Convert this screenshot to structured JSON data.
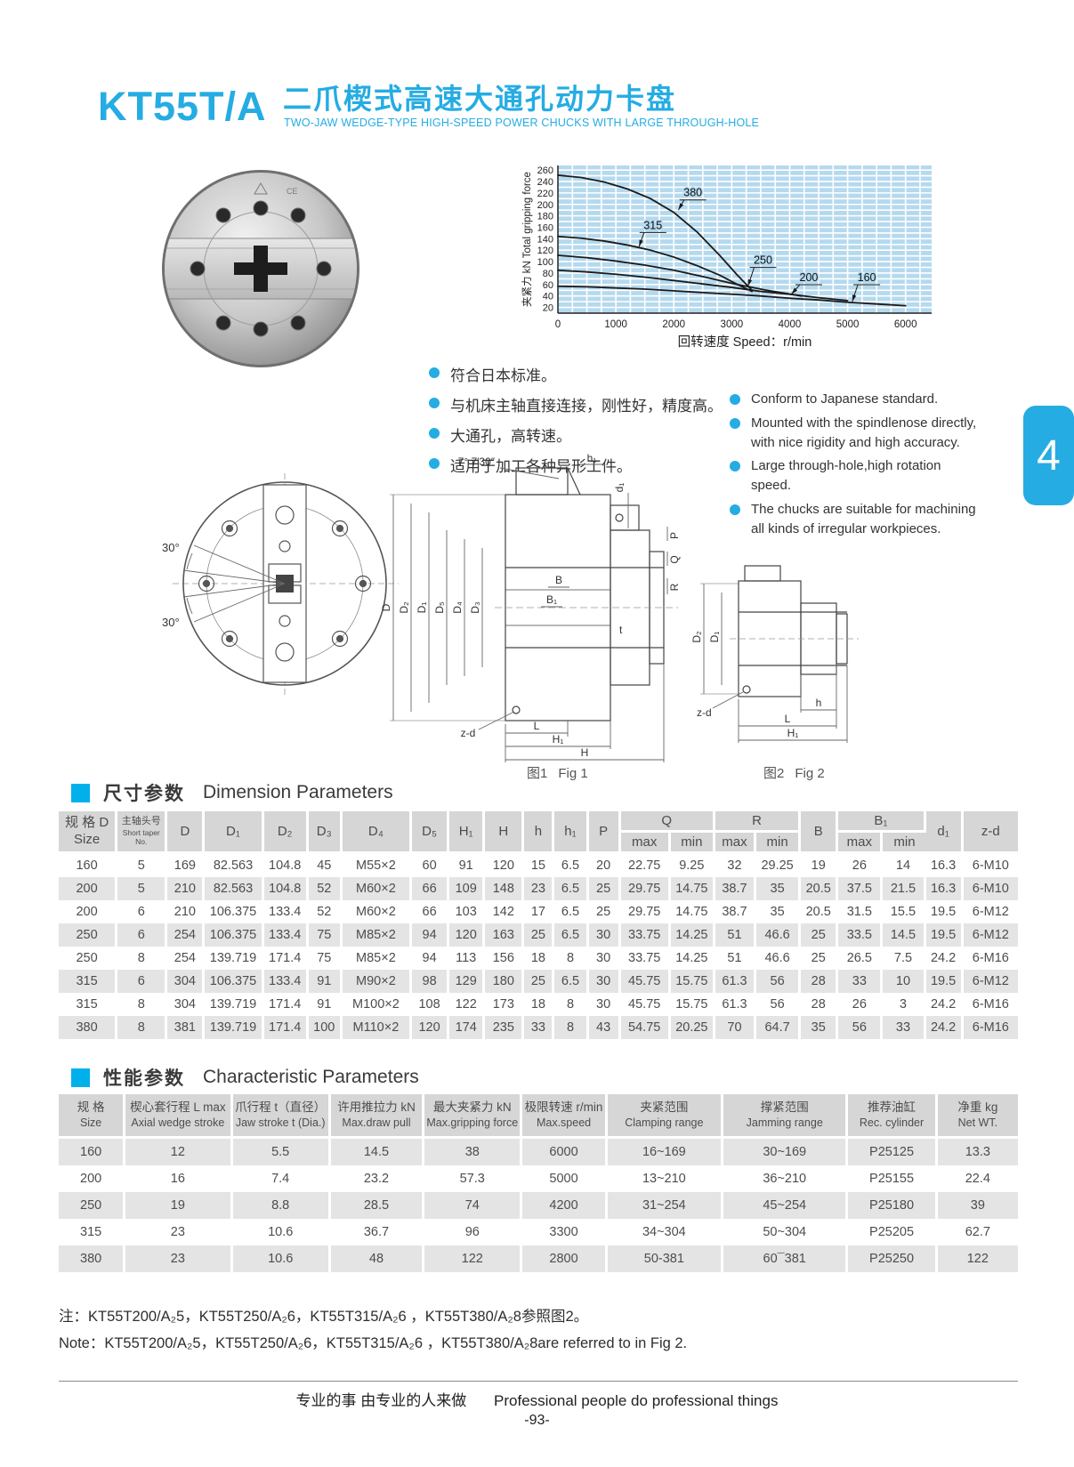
{
  "header": {
    "model": "KT55T/A",
    "title_zh": "二爪楔式高速大通孔动力卡盘",
    "title_en": "TWO-JAW WEDGE-TYPE HIGH-SPEED POWER CHUCKS WITH LARGE THROUGH-HOLE"
  },
  "side_tab": "4",
  "features_zh": [
    "符合日本标准。",
    "与机床主轴直接连接，刚性好，精度高。",
    "大通孔，高转速。",
    "适用于加工各种异形工件。"
  ],
  "features_en": [
    "Conform to Japanese standard.",
    "Mounted with the spindlenose directly, with nice rigidity and high accuracy.",
    "Large through-hole,high rotation speed.",
    "The chucks are suitable for machining all kinds of irregular workpieces."
  ],
  "chart_data": {
    "type": "line",
    "title": "",
    "xlabel": "回转速度  Speed：r/min",
    "ylabel": "夹紧力   kN Total gripping force",
    "xlim": [
      0,
      6450
    ],
    "ylim": [
      10,
      268
    ],
    "x_ticks": [
      0,
      1000,
      2000,
      3000,
      4000,
      5000,
      6000
    ],
    "y_ticks": [
      20,
      40,
      60,
      80,
      100,
      120,
      140,
      160,
      180,
      200,
      220,
      240,
      260
    ],
    "grid_x_step": 250,
    "grid_y_step": 10,
    "grid": "on",
    "plot_bg": "#b5d9ee",
    "line_color": "#1a1a1a",
    "legend_position": "inline-labels",
    "series": [
      {
        "name": "380",
        "label_xy": [
          2330,
          214
        ],
        "arrow_xy": [
          2080,
          190
        ],
        "points": [
          [
            0,
            251
          ],
          [
            400,
            247
          ],
          [
            800,
            239
          ],
          [
            1200,
            227
          ],
          [
            1600,
            210
          ],
          [
            2000,
            186
          ],
          [
            2400,
            152
          ],
          [
            2800,
            110
          ],
          [
            3100,
            76
          ],
          [
            3350,
            50
          ]
        ]
      },
      {
        "name": "315",
        "label_xy": [
          1640,
          157
        ],
        "arrow_xy": [
          1400,
          126
        ],
        "points": [
          [
            0,
            144
          ],
          [
            400,
            141
          ],
          [
            800,
            136
          ],
          [
            1200,
            129
          ],
          [
            1600,
            120
          ],
          [
            2000,
            108
          ],
          [
            2400,
            93
          ],
          [
            2800,
            76
          ],
          [
            3100,
            60
          ],
          [
            3350,
            48
          ]
        ]
      },
      {
        "name": "250",
        "label_xy": [
          3540,
          96
        ],
        "arrow_xy": [
          3280,
          57
        ],
        "points": [
          [
            0,
            111
          ],
          [
            500,
            107
          ],
          [
            1000,
            101
          ],
          [
            1500,
            94
          ],
          [
            2000,
            85
          ],
          [
            2500,
            74
          ],
          [
            3000,
            62
          ],
          [
            3600,
            50
          ],
          [
            4200,
            40
          ]
        ]
      },
      {
        "name": "200",
        "label_xy": [
          4330,
          66
        ],
        "arrow_xy": [
          4030,
          43
        ],
        "points": [
          [
            0,
            85
          ],
          [
            500,
            82
          ],
          [
            1000,
            78
          ],
          [
            1500,
            73
          ],
          [
            2000,
            67
          ],
          [
            2500,
            61
          ],
          [
            3000,
            55
          ],
          [
            3500,
            48
          ],
          [
            4000,
            43
          ],
          [
            4500,
            37
          ],
          [
            5000,
            32
          ]
        ]
      },
      {
        "name": "160",
        "label_xy": [
          5330,
          66
        ],
        "arrow_xy": [
          5080,
          30
        ],
        "points": [
          [
            0,
            57
          ],
          [
            500,
            56
          ],
          [
            1000,
            54
          ],
          [
            1500,
            52
          ],
          [
            2000,
            49
          ],
          [
            2500,
            46
          ],
          [
            3000,
            43
          ],
          [
            3500,
            40
          ],
          [
            4000,
            36
          ],
          [
            4500,
            33
          ],
          [
            5000,
            29
          ],
          [
            5500,
            26
          ],
          [
            6000,
            23
          ]
        ]
      }
    ]
  },
  "drawings": {
    "front": {
      "angle_top": "30°",
      "angle_bottom": "30°"
    },
    "fig1": {
      "angle": "7°  7′30″",
      "h1": "h₁",
      "d1": "d₁",
      "P": "P",
      "Q": "Q",
      "R": "R",
      "B": "B",
      "B1": "B₁",
      "t": "t",
      "D": "D",
      "D2": "D₂",
      "D1": "D₁",
      "D5": "D₅",
      "D4": "D₄",
      "D3": "D₃",
      "zd": "z-d",
      "L": "L",
      "H1": "H₁",
      "H": "H"
    },
    "fig2": {
      "D2": "D₂",
      "D1": "D₁",
      "zd": "z-d",
      "h": "h",
      "L": "L",
      "H1": "H₁"
    },
    "fig1_caption_zh": "图1",
    "fig1_caption_en": "Fig 1",
    "fig2_caption_zh": "图2",
    "fig2_caption_en": "Fig 2"
  },
  "sections": {
    "dim_zh": "尺寸参数",
    "dim_en": "Dimension Parameters",
    "char_zh": "性能参数",
    "char_en": "Characteristic Parameters"
  },
  "dimension_table": {
    "head": {
      "size_zh": "规 格 D",
      "size_en": "Size",
      "taper_zh": "主轴头号",
      "taper_en": "Short taper No.",
      "cols": {
        "D": "D",
        "D1": "D₁",
        "D2": "D₂",
        "D3": "D₃",
        "D4": "D₄",
        "D5": "D₅",
        "H1": "H₁",
        "H": "H",
        "h": "h",
        "h1": "h₁",
        "P": "P",
        "Q": "Q",
        "R": "R",
        "B": "B",
        "B1": "B₁",
        "d1": "d₁",
        "zd": "z-d"
      }
    },
    "sub_max": "max",
    "sub_min": "min",
    "rows": [
      [
        "160",
        "5",
        "169",
        "82.563",
        "104.8",
        "45",
        "M55×2",
        "60",
        "91",
        "120",
        "15",
        "6.5",
        "20",
        "22.75",
        "9.25",
        "32",
        "29.25",
        "19",
        "26",
        "14",
        "16.3",
        "6-M10"
      ],
      [
        "200",
        "5",
        "210",
        "82.563",
        "104.8",
        "52",
        "M60×2",
        "66",
        "109",
        "148",
        "23",
        "6.5",
        "25",
        "29.75",
        "14.75",
        "38.7",
        "35",
        "20.5",
        "37.5",
        "21.5",
        "16.3",
        "6-M10"
      ],
      [
        "200",
        "6",
        "210",
        "106.375",
        "133.4",
        "52",
        "M60×2",
        "66",
        "103",
        "142",
        "17",
        "6.5",
        "25",
        "29.75",
        "14.75",
        "38.7",
        "35",
        "20.5",
        "31.5",
        "15.5",
        "19.5",
        "6-M12"
      ],
      [
        "250",
        "6",
        "254",
        "106.375",
        "133.4",
        "75",
        "M85×2",
        "94",
        "120",
        "163",
        "25",
        "6.5",
        "30",
        "33.75",
        "14.25",
        "51",
        "46.6",
        "25",
        "33.5",
        "14.5",
        "19.5",
        "6-M12"
      ],
      [
        "250",
        "8",
        "254",
        "139.719",
        "171.4",
        "75",
        "M85×2",
        "94",
        "113",
        "156",
        "18",
        "8",
        "30",
        "33.75",
        "14.25",
        "51",
        "46.6",
        "25",
        "26.5",
        "7.5",
        "24.2",
        "6-M16"
      ],
      [
        "315",
        "6",
        "304",
        "106.375",
        "133.4",
        "91",
        "M90×2",
        "98",
        "129",
        "180",
        "25",
        "6.5",
        "30",
        "45.75",
        "15.75",
        "61.3",
        "56",
        "28",
        "33",
        "10",
        "19.5",
        "6-M12"
      ],
      [
        "315",
        "8",
        "304",
        "139.719",
        "171.4",
        "91",
        "M100×2",
        "108",
        "122",
        "173",
        "18",
        "8",
        "30",
        "45.75",
        "15.75",
        "61.3",
        "56",
        "28",
        "26",
        "3",
        "24.2",
        "6-M16"
      ],
      [
        "380",
        "8",
        "381",
        "139.719",
        "171.4",
        "100",
        "M110×2",
        "120",
        "174",
        "235",
        "33",
        "8",
        "43",
        "54.75",
        "20.25",
        "70",
        "64.7",
        "35",
        "56",
        "33",
        "24.2",
        "6-M16"
      ]
    ]
  },
  "characteristic_table": {
    "head": [
      {
        "zh": "规 格",
        "en": "Size"
      },
      {
        "zh": "楔心套行程 L max",
        "en": "Axial wedge stroke"
      },
      {
        "zh": "爪行程 t（直径）",
        "en": "Jaw stroke t (Dia.)"
      },
      {
        "zh": "许用推拉力 kN",
        "en": "Max.draw pull"
      },
      {
        "zh": "最大夹紧力 kN",
        "en": "Max.gripping force"
      },
      {
        "zh": "极限转速 r/min",
        "en": "Max.speed"
      },
      {
        "zh": "夹紧范围",
        "en": "Clamping range"
      },
      {
        "zh": "撑紧范围",
        "en": "Jamming range"
      },
      {
        "zh": "推荐油缸",
        "en": "Rec. cylinder"
      },
      {
        "zh": "净重 kg",
        "en": "Net WT."
      }
    ],
    "rows": [
      [
        "160",
        "12",
        "5.5",
        "14.5",
        "38",
        "6000",
        "16~169",
        "30~169",
        "P25125",
        "13.3"
      ],
      [
        "200",
        "16",
        "7.4",
        "23.2",
        "57.3",
        "5000",
        "13~210",
        "36~210",
        "P25155",
        "22.4"
      ],
      [
        "250",
        "19",
        "8.8",
        "28.5",
        "74",
        "4200",
        "31~254",
        "45~254",
        "P25180",
        "39"
      ],
      [
        "315",
        "23",
        "10.6",
        "36.7",
        "96",
        "3300",
        "34~304",
        "50~304",
        "P25205",
        "62.7"
      ],
      [
        "380",
        "23",
        "10.6",
        "48",
        "122",
        "2800",
        "50-381",
        "60¯381",
        "P25250",
        "122"
      ]
    ]
  },
  "notes": {
    "zh": "注：KT55T200/A₂5，KT55T250/A₂6，KT55T315/A₂6 ，KT55T380/A₂8参照图2。",
    "en": "Note：KT55T200/A₂5，KT55T250/A₂6，KT55T315/A₂6 ，KT55T380/A₂8are referred to in Fig 2."
  },
  "footer": {
    "slogan_zh": "专业的事  由专业的人来做",
    "slogan_en": "Professional people do professional things",
    "page_number": "-93-"
  }
}
